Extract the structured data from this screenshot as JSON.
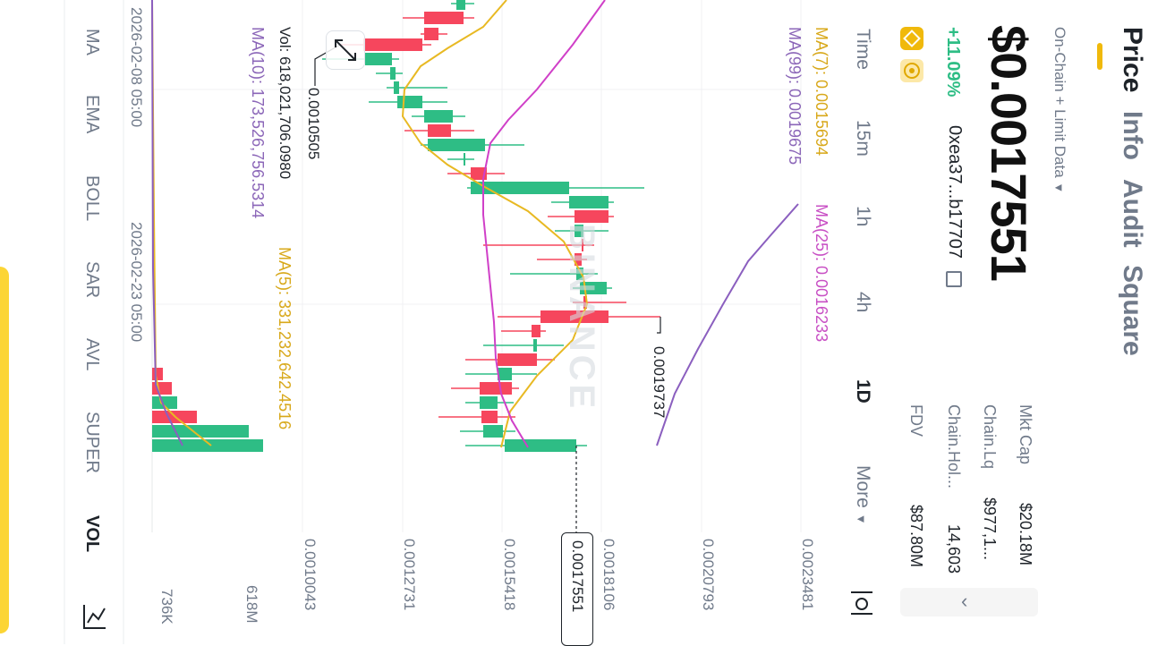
{
  "tabs": [
    {
      "label": "Price",
      "active": true
    },
    {
      "label": "Info",
      "active": false
    },
    {
      "label": "Audit",
      "active": false
    },
    {
      "label": "Square",
      "active": false
    }
  ],
  "data_source": "On-Chain + Limit Data",
  "price": "$0.0017551",
  "change": "+11.09%",
  "address": "0xea37...b17707",
  "stats": [
    {
      "label": "Mkt Cap",
      "value": "$20.18M"
    },
    {
      "label": "Chain.Lq",
      "value": "$977,1..."
    },
    {
      "label": "Chain.Hol...",
      "value": "14,603"
    },
    {
      "label": "FDV",
      "value": "$87.80M"
    }
  ],
  "timeframes": [
    {
      "label": "Time",
      "active": false
    },
    {
      "label": "15m",
      "active": false
    },
    {
      "label": "1h",
      "active": false
    },
    {
      "label": "4h",
      "active": false
    },
    {
      "label": "1D",
      "active": true
    },
    {
      "label": "More",
      "active": false
    }
  ],
  "ma_lines": {
    "ma7": "MA(7): 0.0015694",
    "ma25": "MA(25): 0.0016233",
    "ma99": "MA(99): 0.0019675"
  },
  "vol_lines": {
    "vol": "Vol: 618,021,706.0980",
    "ma5": "MA(5): 331,232,642.4516",
    "ma10": "MA(10): 173,526,756.5314"
  },
  "y_ticks": [
    "0.0023481",
    "0.0020793",
    "0.0018106",
    "0.0015418",
    "0.0012731",
    "0.0010043"
  ],
  "current_price_label": "0.0017551",
  "high_label": "0.0019737",
  "low_label": "0.0010505",
  "x_labels": [
    "2026-02-08 05:00",
    "2026-02-23 05:00"
  ],
  "vol_axis": [
    "618M",
    "736K"
  ],
  "indicators": [
    {
      "label": "MA",
      "active": false
    },
    {
      "label": "EMA",
      "active": false
    },
    {
      "label": "BOLL",
      "active": false
    },
    {
      "label": "SAR",
      "active": false
    },
    {
      "label": "AVL",
      "active": false
    },
    {
      "label": "SUPER",
      "active": false
    },
    {
      "label": "VOL",
      "active": true
    }
  ],
  "watermark": "BINANCE",
  "colors": {
    "up": "#2ebd85",
    "down": "#f6465d",
    "accent": "#f0b90b",
    "ma7": "#e8b923",
    "ma25": "#d040c8",
    "ma99": "#8b5fbf"
  },
  "icons": {
    "dropdown": "caret-down-icon",
    "copy": "copy-icon",
    "expand": "expand-icon",
    "settings": "chart-settings-icon",
    "drawing": "drawing-tool-icon",
    "collapse": "chevron-left-icon"
  }
}
